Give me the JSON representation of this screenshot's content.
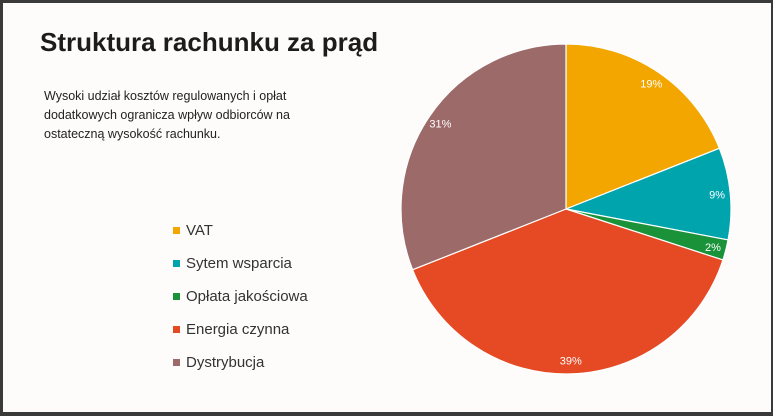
{
  "title": "Struktura rachunku za prąd",
  "description": "Wysoki udział kosztów regulowanych i opłat dodatkowych ogranicza wpływ odbiorców na ostateczną wysokość rachunku.",
  "chart_data": {
    "type": "pie",
    "categories": [
      "VAT",
      "Sytem wsparcia",
      "Opłata jakościowa",
      "Energia czynna",
      "Dystrybucja"
    ],
    "values": [
      19,
      9,
      2,
      39,
      31
    ],
    "labels": [
      "19%",
      "9%",
      "2%",
      "39%",
      "31%"
    ],
    "colors": [
      "#f3a600",
      "#00a4ad",
      "#19923a",
      "#e64a24",
      "#9c6a68"
    ],
    "legend_position": "left"
  }
}
